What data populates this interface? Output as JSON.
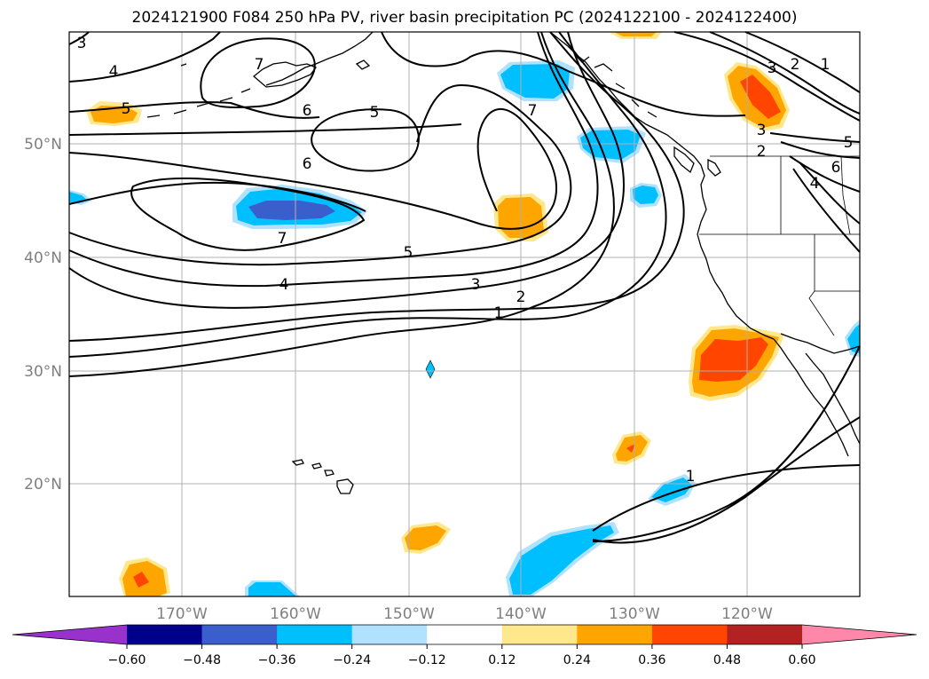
{
  "title": "2024121900 F084 250 hPa PV, river basin precipitation PC (2024122100 - 2024122400)",
  "map": {
    "lat_labels": [
      "50°N",
      "40°N",
      "30°N",
      "20°N"
    ],
    "lon_labels": [
      "170°W",
      "160°W",
      "150°W",
      "140°W",
      "130°W",
      "120°W"
    ],
    "contour_labels": [
      "3",
      "4",
      "5",
      "7",
      "6",
      "5",
      "6",
      "7",
      "7",
      "5",
      "4",
      "3",
      "2",
      "1",
      "1",
      "3",
      "2",
      "1",
      "3",
      "2",
      "5",
      "6",
      "4"
    ]
  },
  "colorbar": {
    "ticks": [
      "−0.60",
      "−0.48",
      "−0.36",
      "−0.24",
      "−0.12",
      "0.12",
      "0.24",
      "0.36",
      "0.48",
      "0.60"
    ],
    "colors": [
      "#9932cc",
      "#00008b",
      "#3a5fcd",
      "#00bfff",
      "#b0e2ff",
      "#ffffff",
      "#ffe88c",
      "#ffa500",
      "#ff4500",
      "#b22222",
      "#ff88aa"
    ]
  }
}
